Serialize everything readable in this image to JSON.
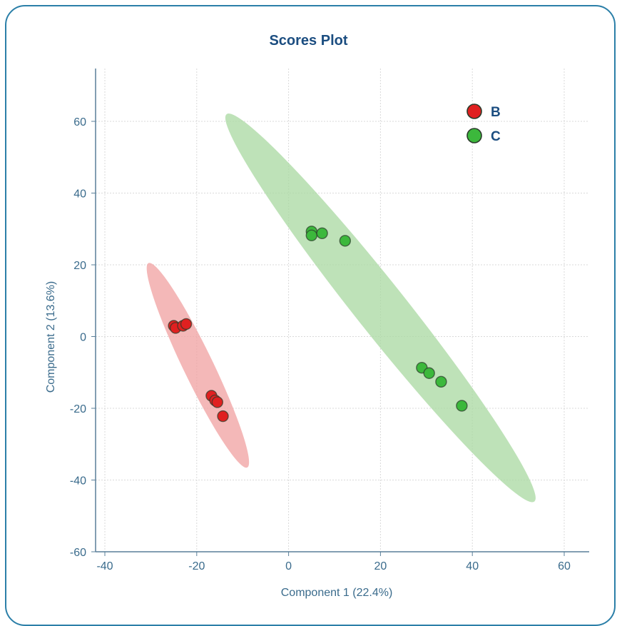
{
  "chart_data": {
    "type": "scatter",
    "title": "Scores Plot",
    "xlabel": "Component 1 (22.4%)",
    "ylabel": "Component 2 (13.6%)",
    "xlim": [
      -40,
      65
    ],
    "ylim": [
      -60,
      75
    ],
    "xticks": [
      -40,
      -20,
      0,
      20,
      40,
      60
    ],
    "yticks": [
      -60,
      -40,
      -20,
      0,
      20,
      40,
      60
    ],
    "grid": true,
    "legend_position": "top-right",
    "series": [
      {
        "name": "B",
        "color": "#e02020",
        "ellipse_color": "#f0a0a0",
        "points": [
          {
            "x": -25.0,
            "y": 3.0
          },
          {
            "x": -24.6,
            "y": 2.4
          },
          {
            "x": -23.0,
            "y": 3.0
          },
          {
            "x": -22.3,
            "y": 3.5
          },
          {
            "x": -16.8,
            "y": -16.5
          },
          {
            "x": -16.0,
            "y": -17.8
          },
          {
            "x": -15.5,
            "y": -18.3
          },
          {
            "x": -14.3,
            "y": -22.2
          }
        ]
      },
      {
        "name": "C",
        "color": "#3cb83c",
        "ellipse_color": "#a8d8a0",
        "points": [
          {
            "x": 5.0,
            "y": 29.3
          },
          {
            "x": 5.0,
            "y": 28.2
          },
          {
            "x": 7.3,
            "y": 28.8
          },
          {
            "x": 12.3,
            "y": 26.7
          },
          {
            "x": 29.0,
            "y": -8.7
          },
          {
            "x": 30.6,
            "y": -10.2
          },
          {
            "x": 33.2,
            "y": -12.6
          },
          {
            "x": 37.7,
            "y": -19.3
          }
        ]
      }
    ],
    "ellipses": [
      {
        "series": "B",
        "x1": -30.5,
        "y1": 20.5,
        "x2": -9.0,
        "y2": -36.5,
        "width": 6.5
      },
      {
        "series": "C",
        "x1": -13.5,
        "y1": 62.0,
        "x2": 53.5,
        "y2": -46.0,
        "width": 11.0
      }
    ]
  }
}
